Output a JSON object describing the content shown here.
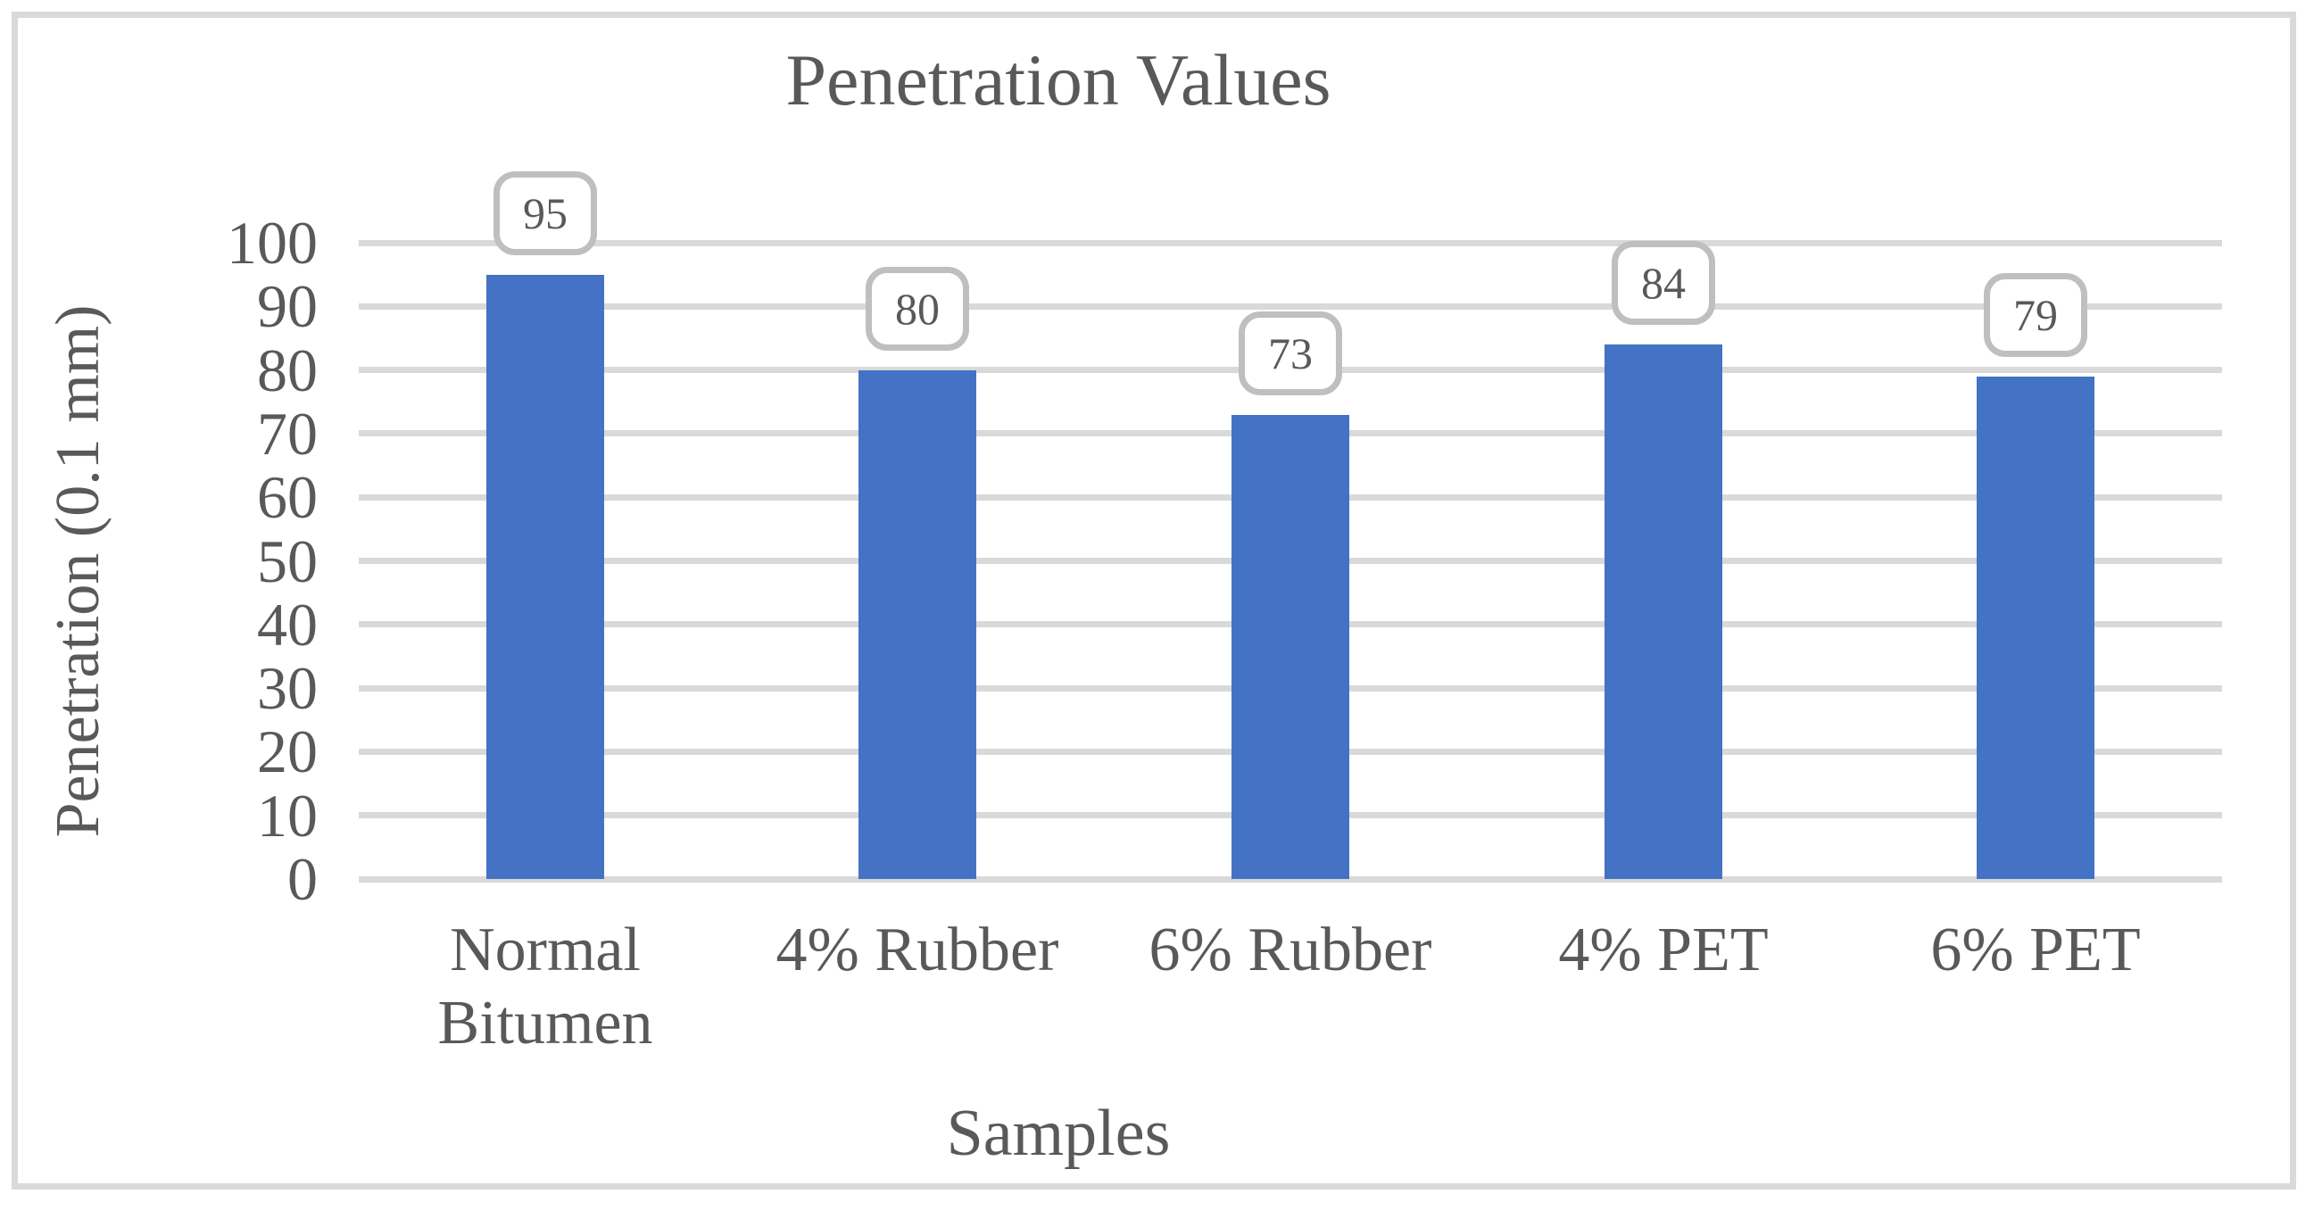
{
  "chart_data": {
    "type": "bar",
    "title": "Penetration Values",
    "xlabel": "Samples",
    "ylabel": "Penetration (0.1 mm)",
    "categories": [
      "Normal Bitumen",
      "4% Rubber",
      "6% Rubber",
      "4% PET",
      "6% PET"
    ],
    "values": [
      95,
      80,
      73,
      84,
      79
    ],
    "data_labels": [
      "95",
      "80",
      "73",
      "84",
      "79"
    ],
    "ylim": [
      0,
      100
    ],
    "ytick_step": 10,
    "ytick_labels": [
      "0",
      "10",
      "20",
      "30",
      "40",
      "50",
      "60",
      "70",
      "80",
      "90",
      "100"
    ],
    "grid": "horizontal",
    "legend": "none",
    "data_label_style": "rounded-callout-box-above-bar",
    "colors": {
      "bar": "#4472C4",
      "gridline": "#D9D9D9",
      "frame_border": "#D9D9D9",
      "text": "#595959",
      "data_label_border": "#BFBFBF",
      "data_label_fill": "#FFFFFF",
      "background": "#FFFFFF"
    }
  }
}
